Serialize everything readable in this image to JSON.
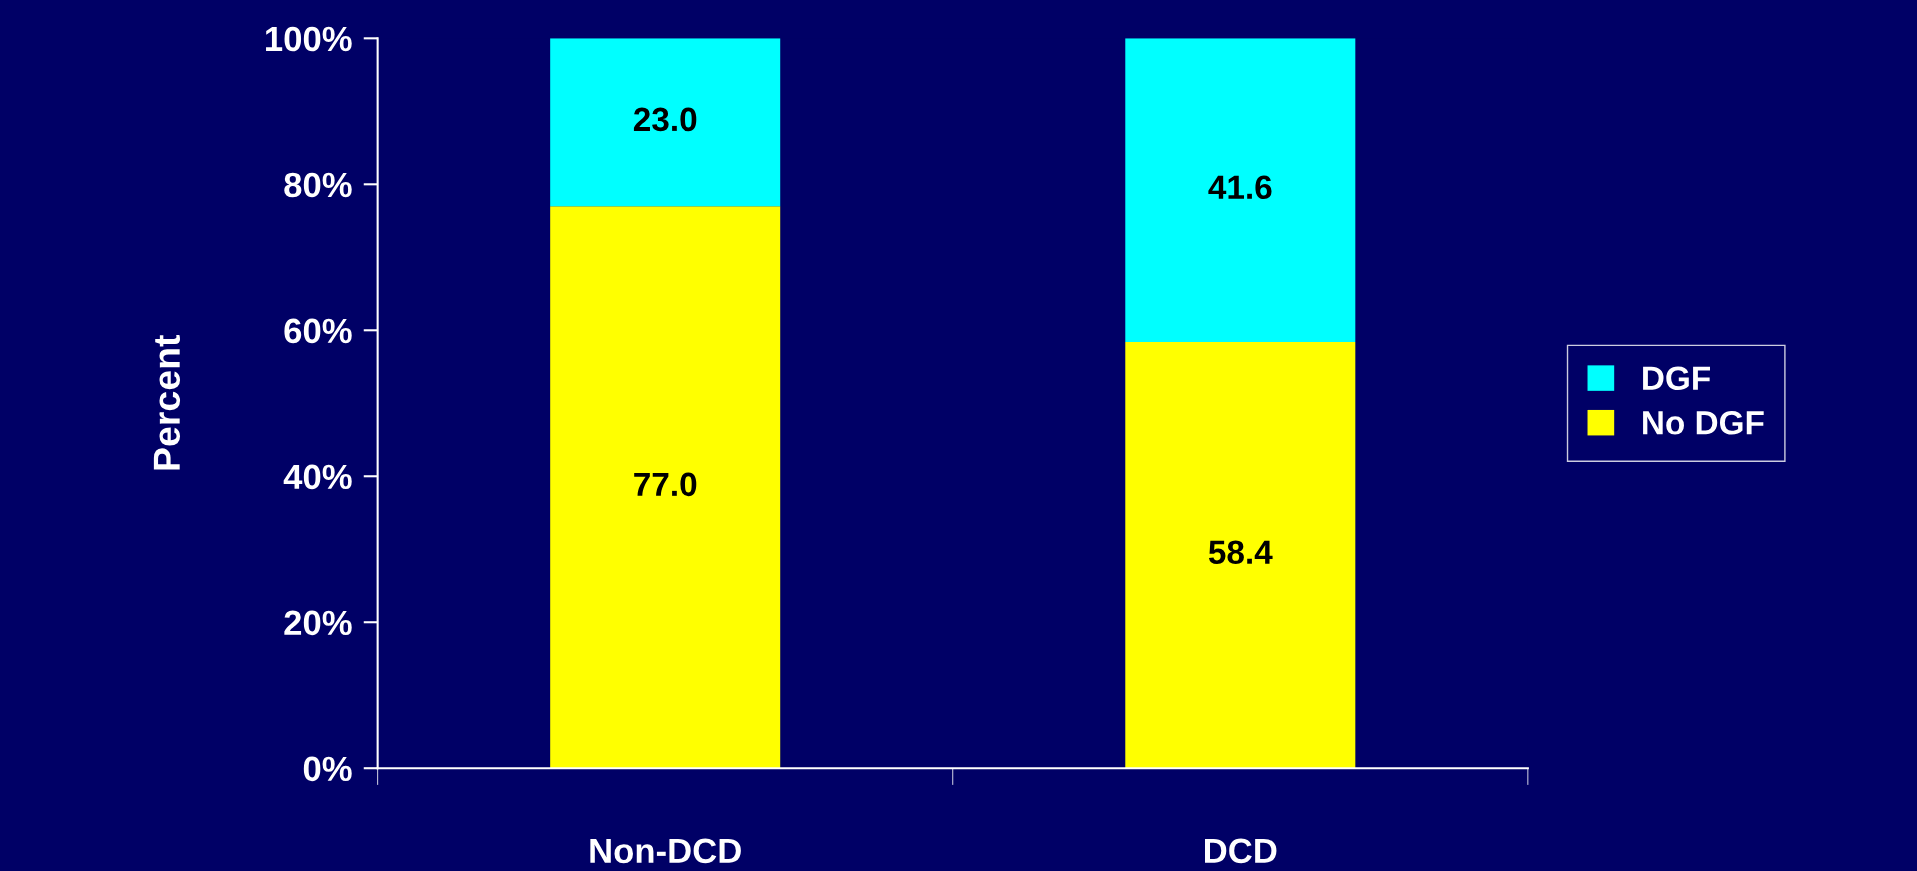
{
  "chart_data": {
    "type": "bar",
    "stacked": true,
    "ylabel": "Percent",
    "categories": [
      "Non-DCD",
      "DCD"
    ],
    "series": [
      {
        "name": "No DGF",
        "color": "#ffff00",
        "values": [
          77.0,
          58.4
        ],
        "value_labels": [
          "77.0",
          "58.4"
        ]
      },
      {
        "name": "DGF",
        "color": "#00ffff",
        "values": [
          23.0,
          41.6
        ],
        "value_labels": [
          "23.0",
          "41.6"
        ]
      }
    ],
    "ylim": [
      0,
      100
    ],
    "yticks": [
      {
        "value": 0,
        "label": "0%"
      },
      {
        "value": 20,
        "label": "20%"
      },
      {
        "value": 40,
        "label": "40%"
      },
      {
        "value": 60,
        "label": "60%"
      },
      {
        "value": 80,
        "label": "80%"
      },
      {
        "value": 100,
        "label": "100%"
      }
    ],
    "grid": false,
    "legend": "right"
  }
}
